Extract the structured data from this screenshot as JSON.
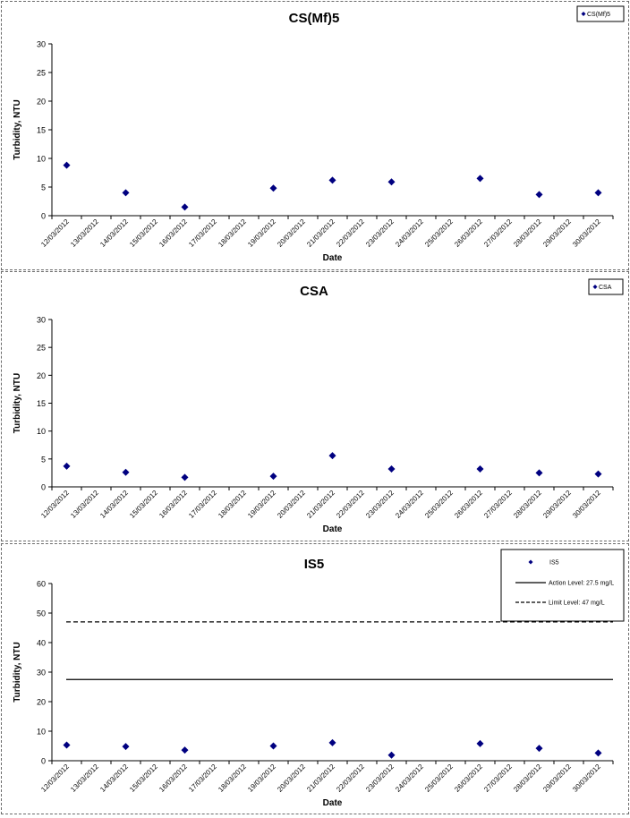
{
  "colors": {
    "series": "#000080",
    "axis": "#000000",
    "reference_line": "#000000"
  },
  "chart_data": [
    {
      "type": "scatter",
      "title": "CS(Mf)5",
      "xlabel": "Date",
      "ylabel": "Turbidity, NTU",
      "ylim": [
        0,
        30
      ],
      "yticks": [
        0,
        5,
        10,
        15,
        20,
        25,
        30
      ],
      "x_categories": [
        "12/03/2012",
        "13/03/2012",
        "14/03/2012",
        "15/03/2012",
        "16/03/2012",
        "17/03/2012",
        "18/03/2012",
        "19/03/2012",
        "20/03/2012",
        "21/03/2012",
        "22/03/2012",
        "23/03/2012",
        "24/03/2012",
        "25/03/2012",
        "26/03/2012",
        "27/03/2012",
        "28/03/2012",
        "29/03/2012",
        "30/03/2012"
      ],
      "legend": "top-right",
      "series": [
        {
          "name": "CS(Mf)5",
          "marker": "diamond",
          "points": [
            {
              "x": "12/03/2012",
              "y": 8.8
            },
            {
              "x": "14/03/2012",
              "y": 4.0
            },
            {
              "x": "16/03/2012",
              "y": 1.5
            },
            {
              "x": "19/03/2012",
              "y": 4.8
            },
            {
              "x": "21/03/2012",
              "y": 6.2
            },
            {
              "x": "23/03/2012",
              "y": 5.9
            },
            {
              "x": "26/03/2012",
              "y": 6.5
            },
            {
              "x": "28/03/2012",
              "y": 3.7
            },
            {
              "x": "30/03/2012",
              "y": 4.0
            }
          ]
        }
      ]
    },
    {
      "type": "scatter",
      "title": "CSA",
      "xlabel": "Date",
      "ylabel": "Turbidity, NTU",
      "ylim": [
        0,
        30
      ],
      "yticks": [
        0,
        5,
        10,
        15,
        20,
        25,
        30
      ],
      "x_categories": [
        "12/03/2012",
        "13/03/2012",
        "14/03/2012",
        "15/03/2012",
        "16/03/2012",
        "17/03/2012",
        "18/03/2012",
        "19/03/2012",
        "20/03/2012",
        "21/03/2012",
        "22/03/2012",
        "23/03/2012",
        "24/03/2012",
        "25/03/2012",
        "26/03/2012",
        "27/03/2012",
        "28/03/2012",
        "29/03/2012",
        "30/03/2012"
      ],
      "legend": "top-right",
      "series": [
        {
          "name": "CSA",
          "marker": "diamond",
          "points": [
            {
              "x": "12/03/2012",
              "y": 3.7
            },
            {
              "x": "14/03/2012",
              "y": 2.6
            },
            {
              "x": "16/03/2012",
              "y": 1.7
            },
            {
              "x": "19/03/2012",
              "y": 1.9
            },
            {
              "x": "21/03/2012",
              "y": 5.6
            },
            {
              "x": "23/03/2012",
              "y": 3.2
            },
            {
              "x": "26/03/2012",
              "y": 3.2
            },
            {
              "x": "28/03/2012",
              "y": 2.5
            },
            {
              "x": "30/03/2012",
              "y": 2.3
            }
          ]
        }
      ]
    },
    {
      "type": "scatter",
      "title": "IS5",
      "xlabel": "Date",
      "ylabel": "Turbidity, NTU",
      "ylim": [
        0,
        60
      ],
      "yticks": [
        0,
        10,
        20,
        30,
        40,
        50,
        60
      ],
      "x_categories": [
        "12/03/2012",
        "13/03/2012",
        "14/03/2012",
        "15/03/2012",
        "16/03/2012",
        "17/03/2012",
        "18/03/2012",
        "19/03/2012",
        "20/03/2012",
        "21/03/2012",
        "22/03/2012",
        "23/03/2012",
        "24/03/2012",
        "25/03/2012",
        "26/03/2012",
        "27/03/2012",
        "28/03/2012",
        "29/03/2012",
        "30/03/2012"
      ],
      "legend": "top-right",
      "series": [
        {
          "name": "IS5",
          "marker": "diamond",
          "points": [
            {
              "x": "12/03/2012",
              "y": 5.3
            },
            {
              "x": "14/03/2012",
              "y": 4.8
            },
            {
              "x": "16/03/2012",
              "y": 3.6
            },
            {
              "x": "19/03/2012",
              "y": 5.0
            },
            {
              "x": "21/03/2012",
              "y": 6.1
            },
            {
              "x": "23/03/2012",
              "y": 1.9
            },
            {
              "x": "26/03/2012",
              "y": 5.8
            },
            {
              "x": "28/03/2012",
              "y": 4.2
            },
            {
              "x": "30/03/2012",
              "y": 2.6
            }
          ]
        }
      ],
      "reference_lines": [
        {
          "name": "Action Level: 27.5 mg/L",
          "y": 27.5,
          "style": "solid"
        },
        {
          "name": "Limit Level: 47 mg/L",
          "y": 47,
          "style": "dashed"
        }
      ]
    }
  ]
}
